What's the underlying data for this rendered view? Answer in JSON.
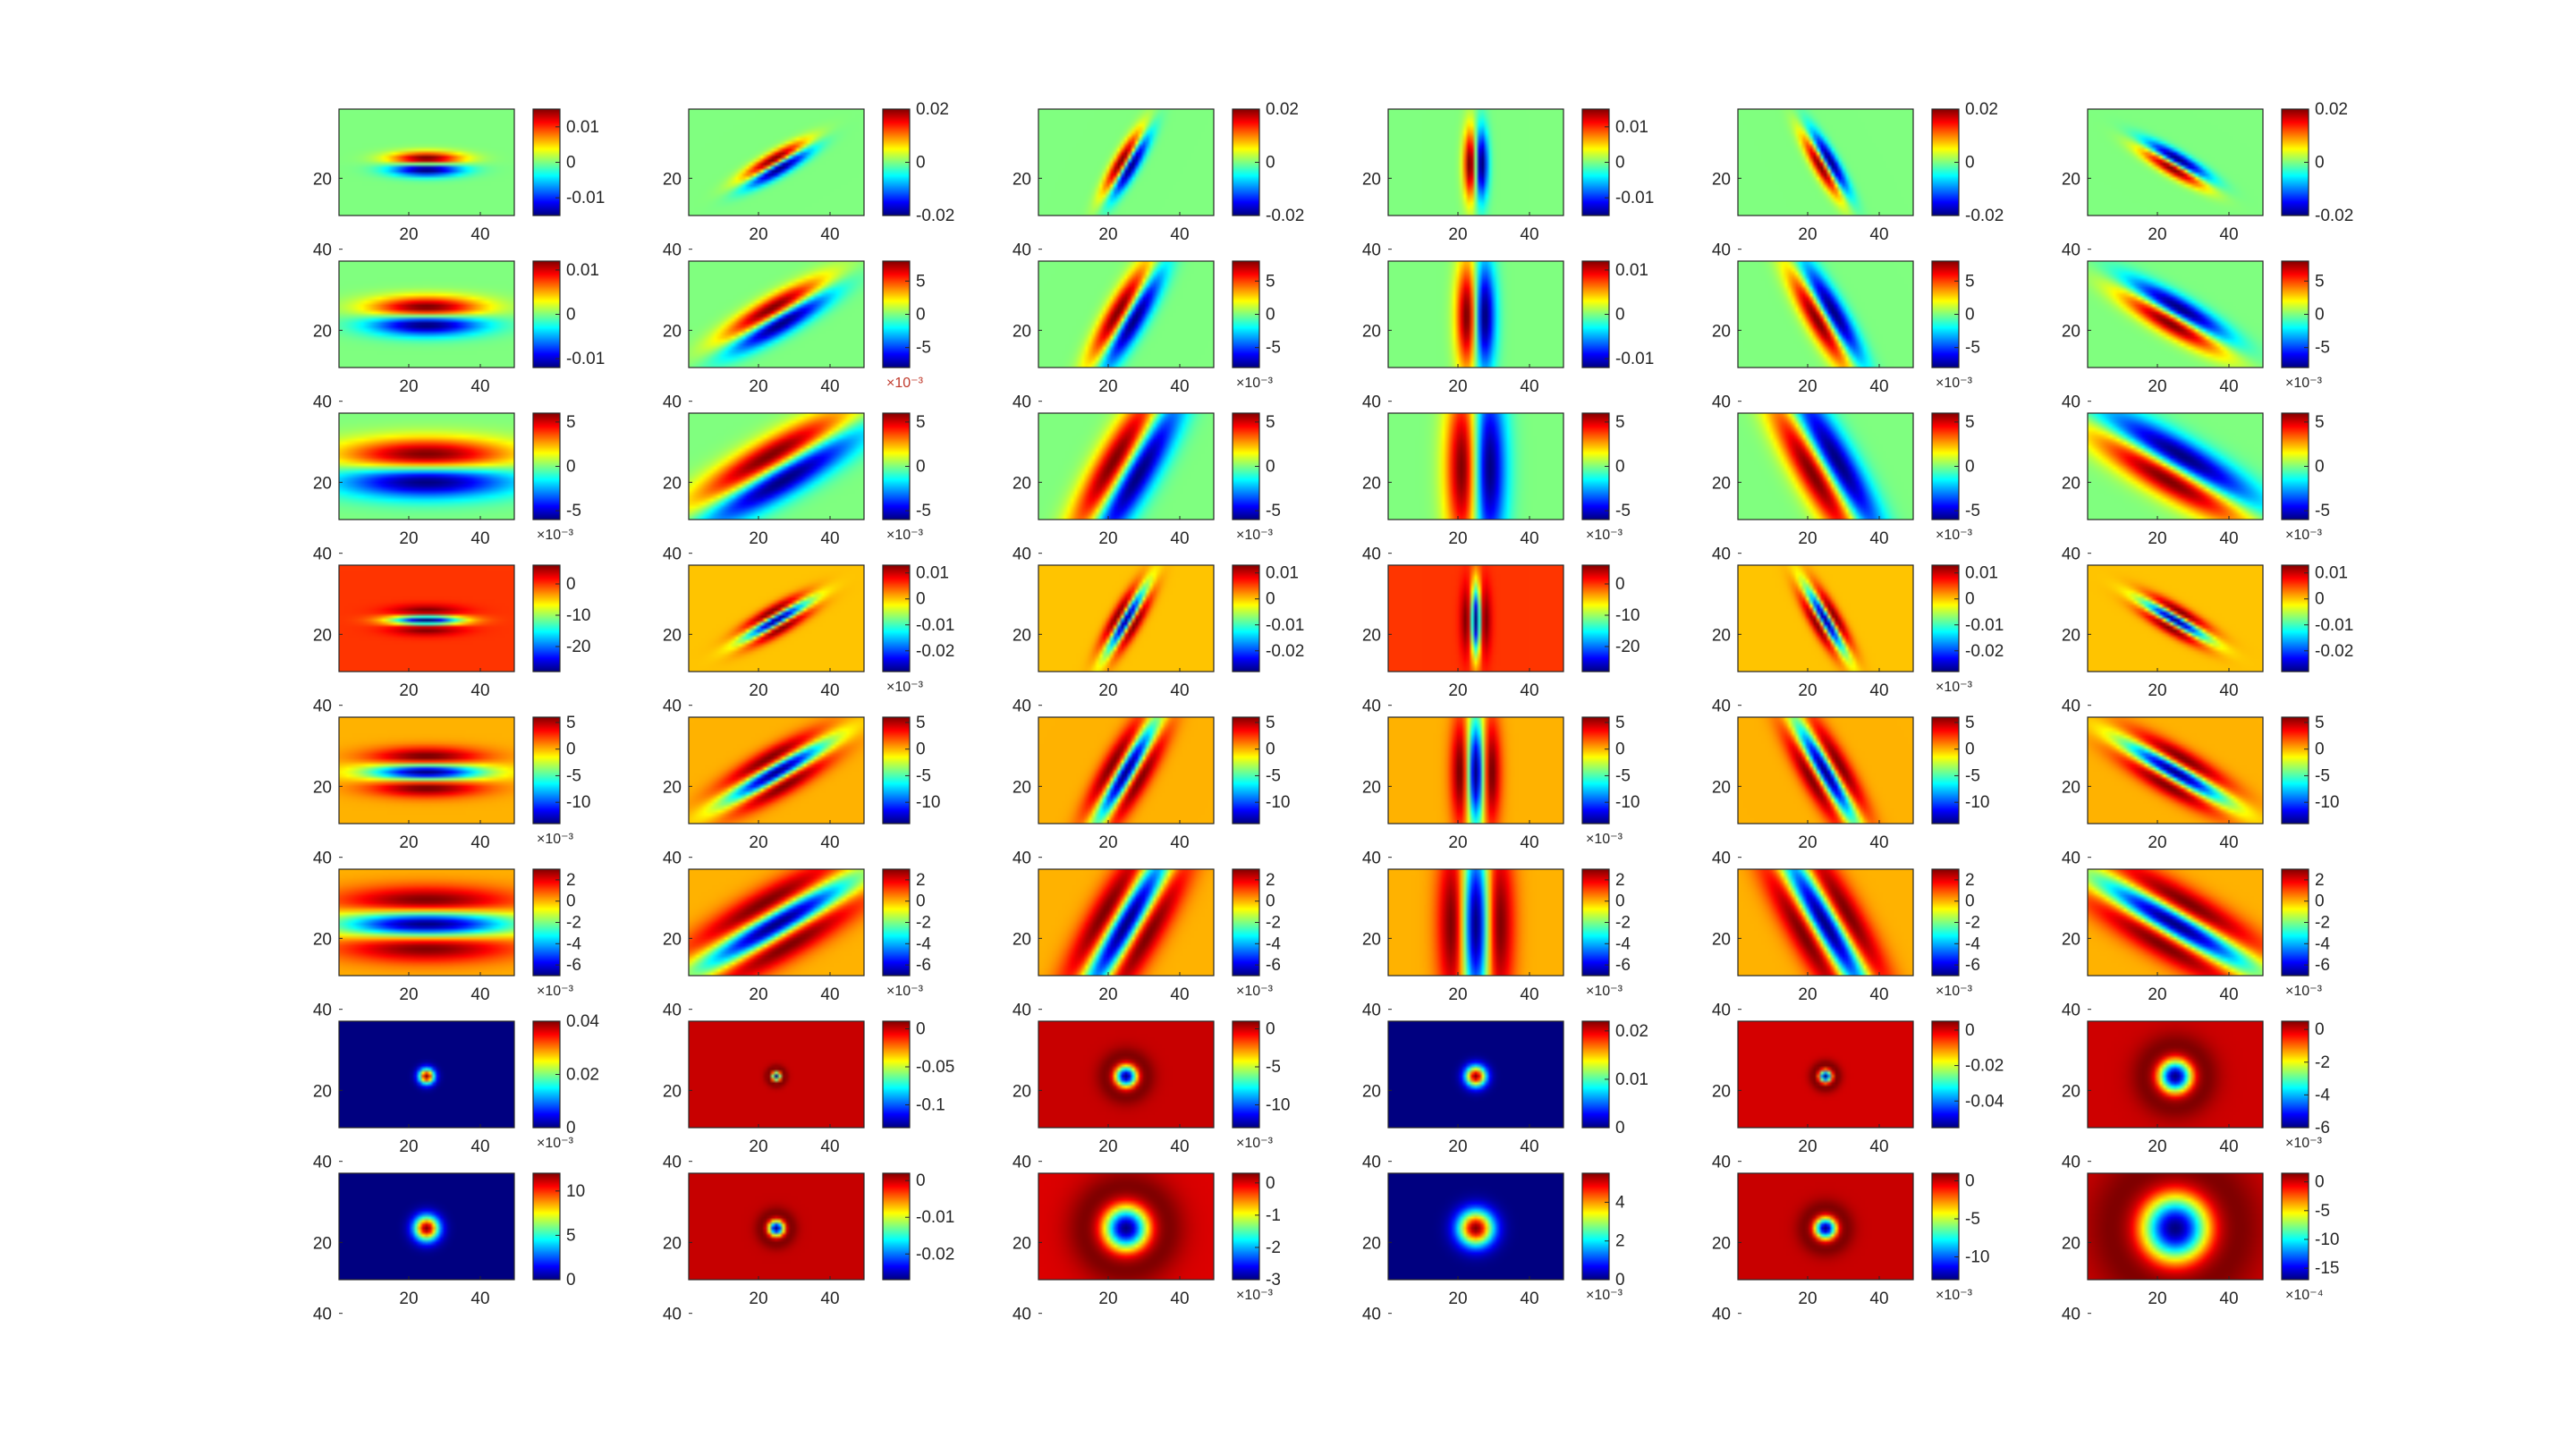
{
  "figure": {
    "axis_ticks": {
      "x": [
        "20",
        "40"
      ],
      "y": [
        "20",
        "40"
      ]
    },
    "colormap": "jet"
  },
  "chart_data": {
    "type": "heatmap",
    "layout": "8 rows x 6 columns grid of image subplots with colorbars",
    "x_ticks": [
      20,
      40
    ],
    "y_ticks": [
      20,
      40
    ],
    "panels": [
      {
        "row": 0,
        "col": 0,
        "kind": "odd",
        "angle": 0,
        "sx": 7,
        "sy": 1.6,
        "ticks": [
          "0.01",
          "0",
          "-0.01"
        ],
        "mult": "",
        "clim": [
          -0.015,
          0.015
        ]
      },
      {
        "row": 0,
        "col": 1,
        "kind": "odd",
        "angle": 30,
        "sx": 7,
        "sy": 1.6,
        "ticks": [
          "0.02",
          "0",
          "-0.02"
        ],
        "mult": "",
        "clim": [
          -0.02,
          0.02
        ]
      },
      {
        "row": 0,
        "col": 2,
        "kind": "odd",
        "angle": 60,
        "sx": 7,
        "sy": 1.6,
        "ticks": [
          "0.02",
          "0",
          "-0.02"
        ],
        "mult": "",
        "clim": [
          -0.02,
          0.02
        ]
      },
      {
        "row": 0,
        "col": 3,
        "kind": "odd",
        "angle": 90,
        "sx": 7,
        "sy": 1.6,
        "ticks": [
          "0.01",
          "0",
          "-0.01"
        ],
        "mult": "",
        "clim": [
          -0.015,
          0.015
        ]
      },
      {
        "row": 0,
        "col": 4,
        "kind": "odd",
        "angle": 120,
        "sx": 7,
        "sy": 1.6,
        "ticks": [
          "0.02",
          "0",
          "-0.02"
        ],
        "mult": "",
        "clim": [
          -0.02,
          0.02
        ]
      },
      {
        "row": 0,
        "col": 5,
        "kind": "odd",
        "angle": 150,
        "sx": 7,
        "sy": 1.6,
        "ticks": [
          "0.02",
          "0",
          "-0.02"
        ],
        "mult": "",
        "clim": [
          -0.02,
          0.02
        ]
      },
      {
        "row": 1,
        "col": 0,
        "kind": "odd",
        "angle": 0,
        "sx": 11,
        "sy": 2.6,
        "ticks": [
          "0.01",
          "0",
          "-0.01"
        ],
        "mult": "",
        "clim": [
          -0.012,
          0.012
        ]
      },
      {
        "row": 1,
        "col": 1,
        "kind": "odd",
        "angle": 30,
        "sx": 11,
        "sy": 2.6,
        "ticks": [
          "5",
          "0",
          "-5"
        ],
        "mult": "×10⁻³",
        "multRed": true,
        "clim": [
          -8,
          8
        ]
      },
      {
        "row": 1,
        "col": 2,
        "kind": "odd",
        "angle": 60,
        "sx": 11,
        "sy": 2.6,
        "ticks": [
          "5",
          "0",
          "-5"
        ],
        "mult": "×10⁻³",
        "clim": [
          -8,
          8
        ]
      },
      {
        "row": 1,
        "col": 3,
        "kind": "odd",
        "angle": 90,
        "sx": 11,
        "sy": 2.6,
        "ticks": [
          "0.01",
          "0",
          "-0.01"
        ],
        "mult": "",
        "clim": [
          -0.012,
          0.012
        ]
      },
      {
        "row": 1,
        "col": 4,
        "kind": "odd",
        "angle": 120,
        "sx": 11,
        "sy": 2.6,
        "ticks": [
          "5",
          "0",
          "-5"
        ],
        "mult": "×10⁻³",
        "clim": [
          -8,
          8
        ]
      },
      {
        "row": 1,
        "col": 5,
        "kind": "odd",
        "angle": 150,
        "sx": 11,
        "sy": 2.6,
        "ticks": [
          "5",
          "0",
          "-5"
        ],
        "mult": "×10⁻³",
        "clim": [
          -8,
          8
        ]
      },
      {
        "row": 2,
        "col": 0,
        "kind": "odd",
        "angle": 0,
        "sx": 17,
        "sy": 4,
        "ticks": [
          "5",
          "0",
          "-5"
        ],
        "mult": "×10⁻³",
        "clim": [
          -6,
          6
        ]
      },
      {
        "row": 2,
        "col": 1,
        "kind": "odd",
        "angle": 30,
        "sx": 17,
        "sy": 4,
        "ticks": [
          "5",
          "0",
          "-5"
        ],
        "mult": "×10⁻³",
        "clim": [
          -6,
          6
        ]
      },
      {
        "row": 2,
        "col": 2,
        "kind": "odd",
        "angle": 60,
        "sx": 17,
        "sy": 4,
        "ticks": [
          "5",
          "0",
          "-5"
        ],
        "mult": "×10⁻³",
        "clim": [
          -6,
          6
        ]
      },
      {
        "row": 2,
        "col": 3,
        "kind": "odd",
        "angle": 90,
        "sx": 17,
        "sy": 4,
        "ticks": [
          "5",
          "0",
          "-5"
        ],
        "mult": "×10⁻³",
        "clim": [
          -6,
          6
        ]
      },
      {
        "row": 2,
        "col": 4,
        "kind": "odd",
        "angle": 120,
        "sx": 17,
        "sy": 4,
        "ticks": [
          "5",
          "0",
          "-5"
        ],
        "mult": "×10⁻³",
        "clim": [
          -6,
          6
        ]
      },
      {
        "row": 2,
        "col": 5,
        "kind": "odd",
        "angle": 150,
        "sx": 17,
        "sy": 4,
        "ticks": [
          "5",
          "0",
          "-5"
        ],
        "mult": "×10⁻³",
        "clim": [
          -6,
          6
        ]
      },
      {
        "row": 3,
        "col": 0,
        "kind": "even",
        "angle": 0,
        "sx": 7,
        "sy": 1.6,
        "ticks": [
          "0",
          "-10",
          "-20"
        ],
        "mult": "",
        "clim": [
          -28,
          6
        ]
      },
      {
        "row": 3,
        "col": 1,
        "kind": "even",
        "angle": 30,
        "sx": 7,
        "sy": 1.6,
        "ticks": [
          "0.01",
          "0",
          "-0.01",
          "-0.02"
        ],
        "mult": "×10⁻³",
        "clim": [
          -0.028,
          0.013
        ]
      },
      {
        "row": 3,
        "col": 2,
        "kind": "even",
        "angle": 60,
        "sx": 7,
        "sy": 1.6,
        "ticks": [
          "0.01",
          "0",
          "-0.01",
          "-0.02"
        ],
        "mult": "",
        "clim": [
          -0.028,
          0.013
        ]
      },
      {
        "row": 3,
        "col": 3,
        "kind": "even",
        "angle": 90,
        "sx": 7,
        "sy": 1.6,
        "ticks": [
          "0",
          "-10",
          "-20"
        ],
        "mult": "",
        "clim": [
          -28,
          6
        ]
      },
      {
        "row": 3,
        "col": 4,
        "kind": "even",
        "angle": 120,
        "sx": 7,
        "sy": 1.6,
        "ticks": [
          "0.01",
          "0",
          "-0.01",
          "-0.02"
        ],
        "mult": "×10⁻³",
        "clim": [
          -0.028,
          0.013
        ]
      },
      {
        "row": 3,
        "col": 5,
        "kind": "even",
        "angle": 150,
        "sx": 7,
        "sy": 1.6,
        "ticks": [
          "0.01",
          "0",
          "-0.01",
          "-0.02"
        ],
        "mult": "",
        "clim": [
          -0.028,
          0.013
        ]
      },
      {
        "row": 4,
        "col": 0,
        "kind": "even",
        "angle": 0,
        "sx": 11,
        "sy": 2.6,
        "ticks": [
          "5",
          "0",
          "-5",
          "-10"
        ],
        "mult": "×10⁻³",
        "clim": [
          -14,
          6
        ]
      },
      {
        "row": 4,
        "col": 1,
        "kind": "even",
        "angle": 30,
        "sx": 11,
        "sy": 2.6,
        "ticks": [
          "5",
          "0",
          "-5",
          "-10"
        ],
        "mult": "",
        "clim": [
          -14,
          6
        ]
      },
      {
        "row": 4,
        "col": 2,
        "kind": "even",
        "angle": 60,
        "sx": 11,
        "sy": 2.6,
        "ticks": [
          "5",
          "0",
          "-5",
          "-10"
        ],
        "mult": "",
        "clim": [
          -14,
          6
        ]
      },
      {
        "row": 4,
        "col": 3,
        "kind": "even",
        "angle": 90,
        "sx": 11,
        "sy": 2.6,
        "ticks": [
          "5",
          "0",
          "-5",
          "-10"
        ],
        "mult": "×10⁻³",
        "clim": [
          -14,
          6
        ]
      },
      {
        "row": 4,
        "col": 4,
        "kind": "even",
        "angle": 120,
        "sx": 11,
        "sy": 2.6,
        "ticks": [
          "5",
          "0",
          "-5",
          "-10"
        ],
        "mult": "",
        "clim": [
          -14,
          6
        ]
      },
      {
        "row": 4,
        "col": 5,
        "kind": "even",
        "angle": 150,
        "sx": 11,
        "sy": 2.6,
        "ticks": [
          "5",
          "0",
          "-5",
          "-10"
        ],
        "mult": "",
        "clim": [
          -14,
          6
        ]
      },
      {
        "row": 5,
        "col": 0,
        "kind": "even",
        "angle": 0,
        "sx": 17,
        "sy": 4,
        "ticks": [
          "2",
          "0",
          "-2",
          "-4",
          "-6"
        ],
        "mult": "×10⁻³",
        "clim": [
          -7,
          3
        ]
      },
      {
        "row": 5,
        "col": 1,
        "kind": "even",
        "angle": 30,
        "sx": 17,
        "sy": 4,
        "ticks": [
          "2",
          "0",
          "-2",
          "-4",
          "-6"
        ],
        "mult": "×10⁻³",
        "clim": [
          -7,
          3
        ]
      },
      {
        "row": 5,
        "col": 2,
        "kind": "even",
        "angle": 60,
        "sx": 17,
        "sy": 4,
        "ticks": [
          "2",
          "0",
          "-2",
          "-4",
          "-6"
        ],
        "mult": "×10⁻³",
        "clim": [
          -7,
          3
        ]
      },
      {
        "row": 5,
        "col": 3,
        "kind": "even",
        "angle": 90,
        "sx": 17,
        "sy": 4,
        "ticks": [
          "2",
          "0",
          "-2",
          "-4",
          "-6"
        ],
        "mult": "×10⁻³",
        "clim": [
          -7,
          3
        ]
      },
      {
        "row": 5,
        "col": 4,
        "kind": "even",
        "angle": 120,
        "sx": 17,
        "sy": 4,
        "ticks": [
          "2",
          "0",
          "-2",
          "-4",
          "-6"
        ],
        "mult": "×10⁻³",
        "clim": [
          -7,
          3
        ]
      },
      {
        "row": 5,
        "col": 5,
        "kind": "even",
        "angle": 150,
        "sx": 17,
        "sy": 4,
        "ticks": [
          "2",
          "0",
          "-2",
          "-4",
          "-6"
        ],
        "mult": "×10⁻³",
        "clim": [
          -7,
          3
        ]
      },
      {
        "row": 6,
        "col": 0,
        "kind": "blob",
        "angle": 0,
        "sx": 1.5,
        "sy": 1.5,
        "ticks": [
          "0.04",
          "0.02",
          "0"
        ],
        "mult": "×10⁻³",
        "clim": [
          0,
          0.04
        ]
      },
      {
        "row": 6,
        "col": 1,
        "kind": "log",
        "angle": 0,
        "sx": 1.2,
        "sy": 1.2,
        "ticks": [
          "0",
          "-0.05",
          "-0.1"
        ],
        "mult": "",
        "clim": [
          -0.13,
          0.01
        ]
      },
      {
        "row": 6,
        "col": 2,
        "kind": "log",
        "angle": 0,
        "sx": 3,
        "sy": 3,
        "ticks": [
          "0",
          "-5",
          "-10"
        ],
        "mult": "×10⁻³",
        "clim": [
          -13,
          1
        ]
      },
      {
        "row": 6,
        "col": 3,
        "kind": "blob",
        "angle": 0,
        "sx": 2,
        "sy": 2,
        "ticks": [
          "0.02",
          "0.01",
          "0"
        ],
        "mult": "",
        "clim": [
          0,
          0.022
        ]
      },
      {
        "row": 6,
        "col": 4,
        "kind": "log",
        "angle": 0,
        "sx": 1.7,
        "sy": 1.7,
        "ticks": [
          "0",
          "-0.02",
          "-0.04"
        ],
        "mult": "",
        "clim": [
          -0.055,
          0.005
        ]
      },
      {
        "row": 6,
        "col": 5,
        "kind": "log",
        "angle": 0,
        "sx": 4.5,
        "sy": 4.5,
        "ticks": [
          "0",
          "-2",
          "-4",
          "-6"
        ],
        "mult": "×10⁻³",
        "clim": [
          -6,
          0.5
        ]
      },
      {
        "row": 7,
        "col": 0,
        "kind": "blob",
        "angle": 0,
        "sx": 2.4,
        "sy": 2.4,
        "ticks": [
          "10",
          "5",
          "0"
        ],
        "mult": "",
        "clim": [
          0,
          12
        ]
      },
      {
        "row": 7,
        "col": 1,
        "kind": "log",
        "angle": 0,
        "sx": 2.2,
        "sy": 2.2,
        "ticks": [
          "0",
          "-0.01",
          "-0.02"
        ],
        "mult": "",
        "clim": [
          -0.027,
          0.002
        ]
      },
      {
        "row": 7,
        "col": 2,
        "kind": "log",
        "angle": 0,
        "sx": 6,
        "sy": 6,
        "ticks": [
          "0",
          "-1",
          "-2",
          "-3"
        ],
        "mult": "×10⁻³",
        "clim": [
          -3,
          0.3
        ]
      },
      {
        "row": 7,
        "col": 3,
        "kind": "blob",
        "angle": 0,
        "sx": 3.4,
        "sy": 3.4,
        "ticks": [
          "4",
          "2",
          "0"
        ],
        "mult": "×10⁻³",
        "clim": [
          0,
          5.5
        ]
      },
      {
        "row": 7,
        "col": 4,
        "kind": "log",
        "angle": 0,
        "sx": 3,
        "sy": 3,
        "ticks": [
          "0",
          "-5",
          "-10"
        ],
        "mult": "×10⁻³",
        "clim": [
          -13,
          1
        ]
      },
      {
        "row": 7,
        "col": 5,
        "kind": "log",
        "angle": 0,
        "sx": 9,
        "sy": 9,
        "ticks": [
          "0",
          "-5",
          "-10",
          "-15"
        ],
        "mult": "×10⁻⁴",
        "clim": [
          -17,
          1.5
        ]
      }
    ]
  }
}
